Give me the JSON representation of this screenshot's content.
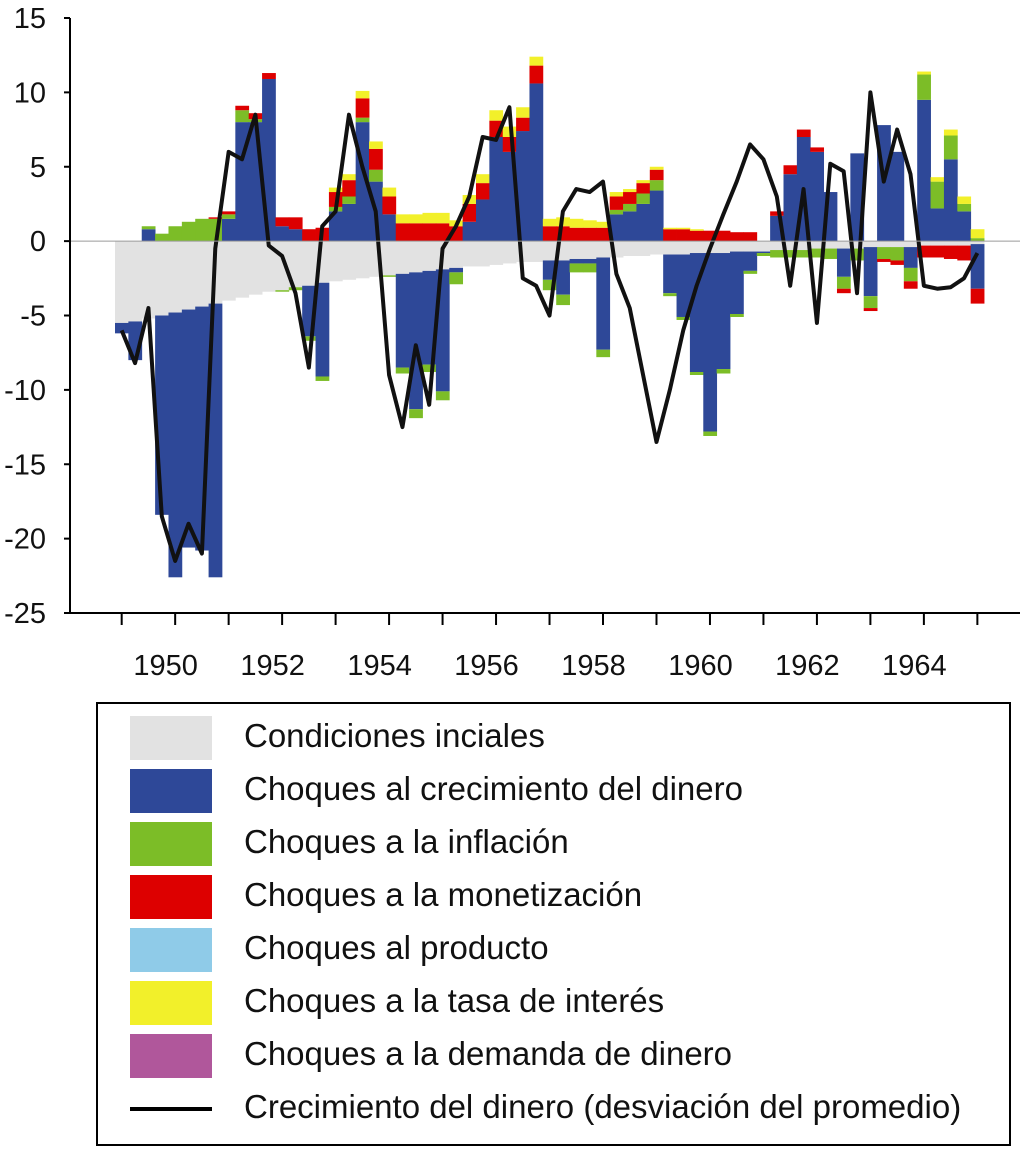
{
  "chart_data": {
    "type": "bar",
    "stacked": true,
    "title": "",
    "xlabel": "",
    "ylabel": "",
    "ylim": [
      -25,
      15
    ],
    "y_ticks": [
      "15",
      "10",
      "5",
      "0",
      "-5",
      "-10",
      "-15",
      "-20",
      "-25"
    ],
    "x_start": 1950.0,
    "x_step": 0.25,
    "x_tick_labels": [
      "1950",
      "1952",
      "1954",
      "1956",
      "1958",
      "1960",
      "1962",
      "1964"
    ],
    "grid": false,
    "legend_position": "bottom",
    "colors": {
      "initial": "#e2e2e2",
      "money": "#2e4898",
      "inflation": "#7cbd27",
      "monetization": "#dd0000",
      "output": "#8fcbe8",
      "interest": "#f2f02a",
      "demand": "#b0579b",
      "line": "#111111"
    },
    "series": [
      {
        "name": "Condiciones inciales",
        "key": "initial",
        "values": [
          -5.5,
          -5.4,
          -5.2,
          -5.0,
          -4.8,
          -4.6,
          -4.4,
          -4.2,
          -4.0,
          -3.8,
          -3.6,
          -3.4,
          -3.3,
          -3.1,
          -3.0,
          -2.8,
          -2.7,
          -2.6,
          -2.5,
          -2.4,
          -2.3,
          -2.2,
          -2.1,
          -2.0,
          -1.9,
          -1.8,
          -1.7,
          -1.7,
          -1.6,
          -1.5,
          -1.4,
          -1.4,
          -1.3,
          -1.3,
          -1.2,
          -1.2,
          -1.1,
          -1.1,
          -1.0,
          -1.0,
          -0.9,
          -0.9,
          -0.9,
          -0.8,
          -0.8,
          -0.8,
          -0.7,
          -0.7,
          -0.7,
          -0.6,
          -0.6,
          -0.6,
          -0.5,
          -0.5,
          -0.5,
          -0.5,
          -0.4,
          -0.4,
          -0.4,
          -0.4,
          -0.3,
          -0.3,
          -0.3,
          -0.3,
          -0.2
        ]
      },
      {
        "name": "Choques al crecimiento del dinero",
        "key": "money",
        "values": [
          -0.7,
          -2.6,
          0.8,
          -13.4,
          -17.8,
          -16.0,
          -16.4,
          -18.4,
          1.5,
          8.0,
          8.0,
          10.9,
          1.0,
          0.8,
          -3.4,
          -6.3,
          2.0,
          2.5,
          8.0,
          4.0,
          1.8,
          -6.3,
          -9.2,
          -6.3,
          -8.2,
          -0.3,
          1.3,
          2.8,
          7.0,
          6.0,
          7.4,
          10.6,
          -1.3,
          -2.3,
          -0.3,
          -0.3,
          -6.2,
          1.8,
          2.0,
          2.5,
          3.4,
          -2.6,
          -4.2,
          -8.0,
          -12.0,
          -7.8,
          -4.2,
          -1.3,
          -0.1,
          1.7,
          4.5,
          7.0,
          6.0,
          3.3,
          -1.9,
          5.9,
          -3.3,
          7.8,
          6.0,
          -1.4,
          9.5,
          2.2,
          5.5,
          2.0,
          -3.0
        ]
      },
      {
        "name": "Choques a la inflación",
        "key": "inflation",
        "values": [
          0.0,
          0.0,
          0.2,
          0.5,
          1.0,
          1.3,
          1.5,
          1.5,
          0.3,
          0.8,
          0.2,
          0.0,
          -0.1,
          -0.2,
          -0.3,
          -0.3,
          0.3,
          0.5,
          0.3,
          0.8,
          -0.1,
          -0.4,
          -0.6,
          -0.5,
          -0.6,
          -0.8,
          0.0,
          0.0,
          0.0,
          0.0,
          0.0,
          0.0,
          -0.7,
          -0.7,
          -0.6,
          -0.6,
          -0.5,
          0.3,
          0.5,
          0.7,
          0.7,
          -0.2,
          -0.2,
          -0.2,
          -0.3,
          -0.3,
          -0.2,
          -0.2,
          -0.2,
          -0.5,
          -0.5,
          -0.5,
          -0.6,
          -0.7,
          -0.8,
          -0.8,
          -0.8,
          -0.8,
          -0.9,
          -0.9,
          1.7,
          1.8,
          1.6,
          0.5,
          0.2
        ]
      },
      {
        "name": "Choques a la monetización",
        "key": "monetization",
        "values": [
          0.0,
          0.0,
          0.0,
          0.0,
          0.0,
          0.0,
          0.0,
          0.1,
          0.2,
          0.3,
          0.4,
          0.4,
          0.6,
          0.8,
          0.8,
          0.9,
          1.0,
          1.1,
          1.3,
          1.4,
          1.2,
          1.2,
          1.2,
          1.2,
          1.2,
          1.0,
          1.2,
          1.1,
          1.1,
          1.0,
          0.9,
          1.2,
          1.0,
          1.0,
          0.9,
          0.9,
          0.9,
          0.9,
          0.8,
          0.7,
          0.7,
          0.8,
          0.8,
          0.7,
          0.7,
          0.7,
          0.6,
          0.6,
          0.0,
          0.3,
          0.6,
          0.5,
          0.3,
          0.0,
          -0.3,
          0.0,
          -0.2,
          -0.2,
          -0.3,
          -0.5,
          -0.8,
          -0.8,
          -0.9,
          -1.0,
          -1.0
        ]
      },
      {
        "name": "Choques al producto",
        "key": "output",
        "values": [
          0,
          0,
          0,
          0,
          0,
          0,
          0,
          0,
          0,
          0,
          0,
          0,
          0,
          0,
          0,
          0,
          0,
          0,
          0,
          0,
          0,
          0,
          0,
          0,
          0,
          0,
          0,
          0,
          0,
          0,
          0,
          0,
          0,
          0,
          0,
          0,
          0,
          0,
          0,
          0,
          0,
          0,
          0,
          0,
          0,
          0,
          0,
          0,
          0,
          0,
          0,
          0,
          0,
          0,
          0,
          0,
          0,
          0,
          0,
          0,
          0,
          0,
          0,
          0,
          0
        ]
      },
      {
        "name": "Choques a la tasa de interés",
        "key": "interest",
        "values": [
          0.0,
          0.0,
          0.0,
          0.0,
          0.0,
          0.0,
          0.0,
          0.0,
          0.0,
          0.0,
          0.0,
          0.0,
          0.0,
          0.0,
          0.0,
          0.0,
          0.3,
          0.4,
          0.5,
          0.5,
          0.6,
          0.6,
          0.6,
          0.7,
          0.7,
          0.4,
          0.6,
          0.6,
          0.7,
          0.7,
          0.7,
          0.6,
          0.5,
          0.6,
          0.6,
          0.5,
          0.4,
          0.3,
          0.2,
          0.2,
          0.2,
          0.1,
          0.1,
          0.1,
          0.0,
          0.0,
          0.0,
          0.0,
          0.0,
          0.0,
          0.0,
          0.0,
          0.0,
          0.0,
          0.0,
          0.0,
          0.0,
          0.0,
          0.0,
          0.0,
          0.2,
          0.3,
          0.4,
          0.5,
          0.6
        ]
      },
      {
        "name": "Choques a la demanda de dinero",
        "key": "demand",
        "values": [
          0,
          0,
          0,
          0,
          0,
          0,
          0,
          0,
          0,
          0,
          0,
          0,
          0,
          0,
          0,
          0,
          0,
          0,
          0,
          0,
          0,
          0,
          0,
          0,
          0,
          0,
          0,
          0,
          0,
          0,
          0,
          0,
          0,
          0,
          0,
          0,
          0,
          0,
          0,
          0,
          0,
          0,
          0,
          0,
          0,
          0,
          0,
          0,
          0,
          0,
          0,
          0,
          0,
          0,
          0,
          0,
          0,
          0,
          0,
          0,
          0,
          0,
          0,
          0,
          0
        ]
      }
    ],
    "line": {
      "name": "Crecimiento del dinero (desviación del promedio)",
      "key": "line",
      "values": [
        -6.0,
        -8.2,
        -4.5,
        -18.5,
        -21.5,
        -19.0,
        -21.0,
        -0.5,
        6.0,
        5.5,
        8.5,
        -0.3,
        -1.0,
        -3.5,
        -8.5,
        1.0,
        2.0,
        8.5,
        5.0,
        2.0,
        -9.0,
        -12.5,
        -7.0,
        -11.0,
        -0.5,
        1.0,
        3.0,
        7.0,
        6.8,
        9.0,
        -2.5,
        -3.0,
        -5.0,
        2.0,
        3.5,
        3.3,
        4.0,
        -2.2,
        -4.5,
        -9.0,
        -13.5,
        -10.0,
        -6.0,
        -3.0,
        -0.5,
        1.8,
        4.0,
        6.5,
        5.5,
        3.0,
        -3.0,
        3.5,
        -5.5,
        5.2,
        4.7,
        -3.5,
        10.0,
        4.0,
        7.5,
        4.5,
        -3.0,
        -3.2,
        -3.1,
        -2.5,
        -0.8
      ]
    }
  },
  "legend": {
    "items": [
      {
        "label": "Condiciones inciales"
      },
      {
        "label": "Choques al crecimiento del dinero"
      },
      {
        "label": "Choques a la inflación"
      },
      {
        "label": "Choques a la monetización"
      },
      {
        "label": "Choques al producto"
      },
      {
        "label": "Choques a la tasa de interés"
      },
      {
        "label": "Choques a la demanda de dinero"
      },
      {
        "label": "Crecimiento del dinero (desviación del promedio)"
      }
    ]
  }
}
